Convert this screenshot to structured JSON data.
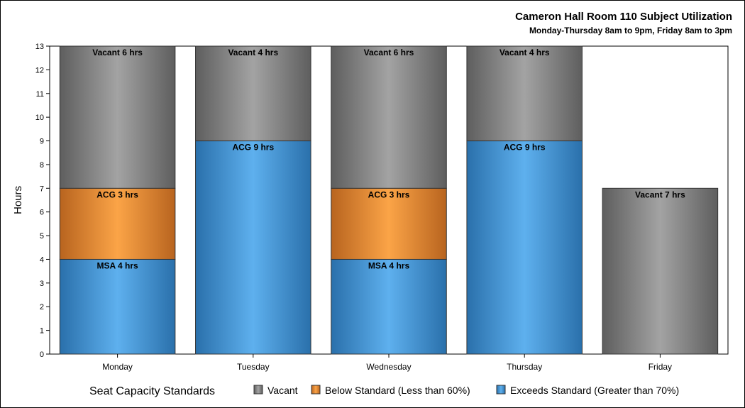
{
  "chart_data": {
    "type": "bar",
    "stacked": true,
    "title": "Cameron Hall Room 110 Subject Utilization",
    "subtitle": "Monday-Thursday 8am to 9pm, Friday 8am to 3pm",
    "xlabel": "",
    "ylabel": "Hours",
    "ylim": [
      0,
      13
    ],
    "yticks": [
      0,
      1,
      2,
      3,
      4,
      5,
      6,
      7,
      8,
      9,
      10,
      11,
      12,
      13
    ],
    "categories": [
      "Monday",
      "Tuesday",
      "Wednesday",
      "Thursday",
      "Friday"
    ],
    "grid": false,
    "legend": {
      "title": "Seat Capacity Standards",
      "placement": "bottom",
      "items": [
        {
          "label": "Vacant",
          "color": "#9a9a9a"
        },
        {
          "label": "Below Standard (Less than 60%)",
          "color": "#f59a3c"
        },
        {
          "label": "Exceeds Standard (Greater than 70%)",
          "color": "#5aaae8"
        }
      ]
    },
    "bars": [
      {
        "category": "Monday",
        "segments": [
          {
            "standard": "Exceeds Standard (Greater than 70%)",
            "value": 4,
            "label": "MSA 4 hrs"
          },
          {
            "standard": "Below Standard (Less than 60%)",
            "value": 3,
            "label": "ACG 3 hrs"
          },
          {
            "standard": "Vacant",
            "value": 6,
            "label": "Vacant 6 hrs"
          }
        ]
      },
      {
        "category": "Tuesday",
        "segments": [
          {
            "standard": "Exceeds Standard (Greater than 70%)",
            "value": 9,
            "label": "ACG 9 hrs"
          },
          {
            "standard": "Vacant",
            "value": 4,
            "label": "Vacant 4 hrs"
          }
        ]
      },
      {
        "category": "Wednesday",
        "segments": [
          {
            "standard": "Exceeds Standard (Greater than 70%)",
            "value": 4,
            "label": "MSA 4 hrs"
          },
          {
            "standard": "Below Standard (Less than 60%)",
            "value": 3,
            "label": "ACG 3 hrs"
          },
          {
            "standard": "Vacant",
            "value": 6,
            "label": "Vacant 6 hrs"
          }
        ]
      },
      {
        "category": "Thursday",
        "segments": [
          {
            "standard": "Exceeds Standard (Greater than 70%)",
            "value": 9,
            "label": "ACG 9 hrs"
          },
          {
            "standard": "Vacant",
            "value": 4,
            "label": "Vacant 4 hrs"
          }
        ]
      },
      {
        "category": "Friday",
        "segments": [
          {
            "standard": "Vacant",
            "value": 7,
            "label": "Vacant 7 hrs"
          }
        ]
      }
    ]
  }
}
